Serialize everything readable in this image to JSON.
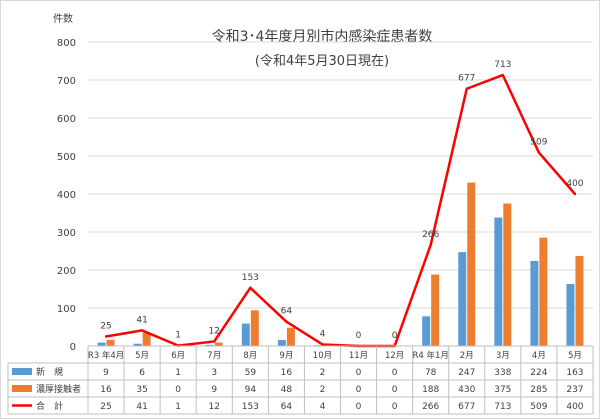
{
  "chart_data": {
    "type": "bar",
    "title": "令和3･4年度月別市内感染症患者数",
    "subtitle": "(令和4年5月30日現在)",
    "ylabel": "件数",
    "ylim": [
      0,
      800
    ],
    "yticks": [
      "0",
      "100",
      "200",
      "300",
      "400",
      "500",
      "600",
      "700",
      "800"
    ],
    "grid": true,
    "categories": [
      "R3 年4月",
      "5月",
      "6月",
      "7月",
      "8月",
      "9月",
      "10月",
      "11月",
      "12月",
      "R4 年1月",
      "2月",
      "3月",
      "4月",
      "5月"
    ],
    "series": [
      {
        "name": "新　規",
        "type": "bar",
        "color": "#5b9bd5",
        "values": [
          9,
          6,
          1,
          3,
          59,
          16,
          2,
          0,
          0,
          78,
          247,
          338,
          224,
          163
        ]
      },
      {
        "name": "濃厚接触者",
        "type": "bar",
        "color": "#ed7d31",
        "values": [
          16,
          35,
          0,
          9,
          94,
          48,
          2,
          0,
          0,
          188,
          430,
          375,
          285,
          237
        ]
      },
      {
        "name": "合　計",
        "type": "line",
        "color": "#ff0000",
        "values": [
          25,
          41,
          1,
          12,
          153,
          64,
          4,
          0,
          0,
          266,
          677,
          713,
          509,
          400
        ]
      }
    ]
  }
}
